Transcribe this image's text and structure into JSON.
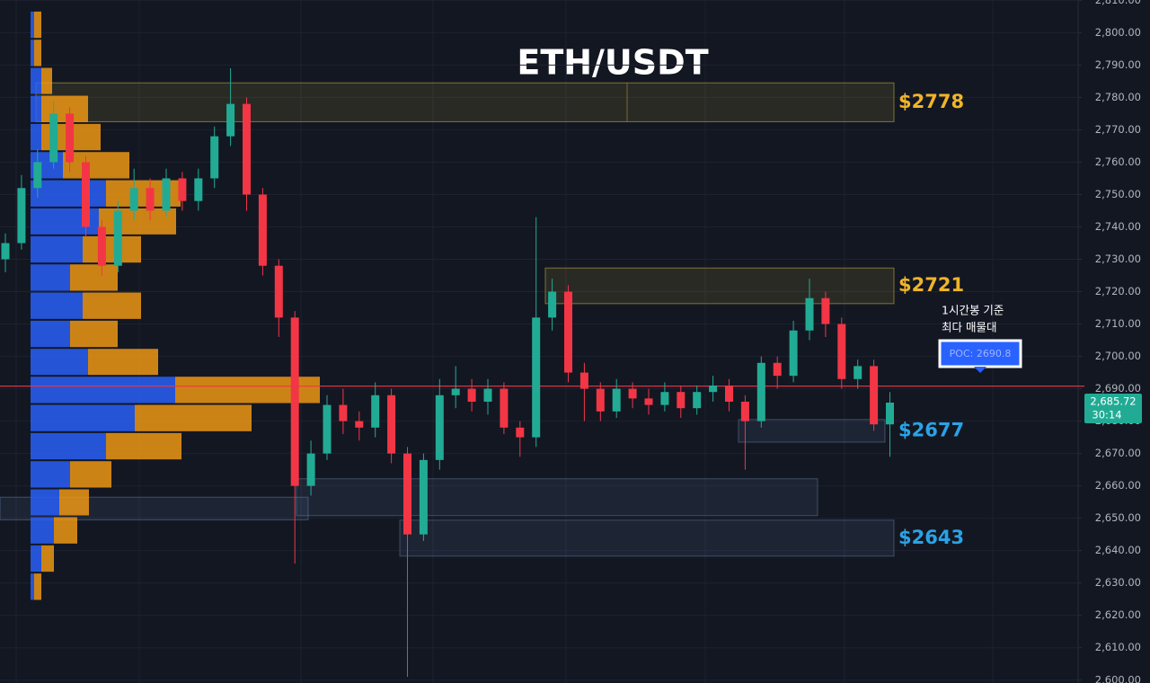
{
  "chart_data": {
    "type": "candlestick",
    "title": "ETH/USDT",
    "up_color": "#22ab94",
    "down_color": "#f23645",
    "open": [
      2730,
      2735,
      2752,
      2760,
      2775,
      2760,
      2740,
      2728,
      2745,
      2752,
      2745,
      2755,
      2748,
      2755,
      2768,
      2778,
      2750,
      2728,
      2712,
      2660,
      2670,
      2685,
      2680,
      2678,
      2688,
      2670,
      2645,
      2668,
      2688,
      2690,
      2686,
      2690,
      2678,
      2675,
      2712,
      2720,
      2695,
      2690,
      2683,
      2690,
      2687,
      2685,
      2689,
      2684,
      2689,
      2691,
      2686,
      2680,
      2698,
      2694,
      2708,
      2718,
      2710,
      2693,
      2697,
      2679
    ],
    "high": [
      2738,
      2756,
      2764,
      2779,
      2777,
      2762,
      2742,
      2748,
      2758,
      2755,
      2758,
      2757,
      2758,
      2771,
      2789,
      2780,
      2752,
      2730,
      2714,
      2674,
      2688,
      2690,
      2683,
      2692,
      2690,
      2672,
      2670,
      2693,
      2697,
      2693,
      2693,
      2692,
      2680,
      2743,
      2724,
      2722,
      2698,
      2692,
      2693,
      2692,
      2690,
      2692,
      2691,
      2691,
      2694,
      2693,
      2688,
      2700,
      2700,
      2711,
      2724,
      2720,
      2712,
      2699,
      2699,
      2689
    ],
    "low": [
      2726,
      2733,
      2749,
      2758,
      2757,
      2737,
      2725,
      2726,
      2742,
      2742,
      2743,
      2745,
      2745,
      2752,
      2765,
      2745,
      2725,
      2706,
      2636,
      2657,
      2668,
      2676,
      2674,
      2675,
      2667,
      2601,
      2643,
      2665,
      2684,
      2683,
      2682,
      2676,
      2669,
      2672,
      2708,
      2692,
      2680,
      2680,
      2681,
      2684,
      2682,
      2683,
      2681,
      2682,
      2686,
      2683,
      2665,
      2678,
      2690,
      2692,
      2705,
      2706,
      2690,
      2690,
      2677,
      2669
    ],
    "close": [
      2735,
      2752,
      2760,
      2775,
      2760,
      2740,
      2728,
      2745,
      2752,
      2745,
      2755,
      2748,
      2755,
      2768,
      2778,
      2750,
      2728,
      2712,
      2660,
      2670,
      2685,
      2680,
      2678,
      2688,
      2670,
      2645,
      2668,
      2688,
      2690,
      2686,
      2690,
      2678,
      2675,
      2712,
      2720,
      2695,
      2690,
      2683,
      2690,
      2687,
      2685,
      2689,
      2684,
      2689,
      2691,
      2686,
      2680,
      2698,
      2694,
      2708,
      2718,
      2710,
      2693,
      2697,
      2679,
      2685.72
    ],
    "ylim": [
      2599.1,
      2810.1
    ],
    "yticks": [
      {
        "value": 2600,
        "label": "2,600.00"
      },
      {
        "value": 2610,
        "label": "2,610.00"
      },
      {
        "value": 2620,
        "label": "2,620.00"
      },
      {
        "value": 2630,
        "label": "2,630.00"
      },
      {
        "value": 2640,
        "label": "2,640.00"
      },
      {
        "value": 2650,
        "label": "2,650.00"
      },
      {
        "value": 2660,
        "label": "2,660.00"
      },
      {
        "value": 2670,
        "label": "2,670.00"
      },
      {
        "value": 2680,
        "label": "2,680.00"
      },
      {
        "value": 2690,
        "label": "2,690.00"
      },
      {
        "value": 2700,
        "label": "2,700.00"
      },
      {
        "value": 2710,
        "label": "2,710.00"
      },
      {
        "value": 2720,
        "label": "2,720.00"
      },
      {
        "value": 2730,
        "label": "2,730.00"
      },
      {
        "value": 2740,
        "label": "2,740.00"
      },
      {
        "value": 2750,
        "label": "2,750.00"
      },
      {
        "value": 2760,
        "label": "2,760.00"
      },
      {
        "value": 2770,
        "label": "2,770.00"
      },
      {
        "value": 2780,
        "label": "2,780.00"
      },
      {
        "value": 2790,
        "label": "2,790.00"
      },
      {
        "value": 2800,
        "label": "2,800.00"
      },
      {
        "value": 2810,
        "label": "2,810.00"
      }
    ],
    "grid": true,
    "volume_profile": {
      "bins": [
        2806.8,
        2798.1,
        2789.4,
        2780.8,
        2772.1,
        2763.4,
        2754.7,
        2746.0,
        2737.4,
        2728.7,
        2720.0,
        2711.3,
        2702.6,
        2694.0,
        2685.3,
        2676.6,
        2667.9,
        2659.2,
        2650.6,
        2641.9,
        2633.2,
        2624.5
      ],
      "buy": [
        4,
        4,
        12,
        12,
        12,
        36,
        84,
        76,
        58,
        44,
        58,
        44,
        64,
        161,
        116,
        84,
        44,
        32,
        26,
        12,
        4
      ],
      "sell": [
        8,
        8,
        12,
        52,
        66,
        74,
        83,
        86,
        65,
        53,
        65,
        53,
        78,
        161,
        130,
        84,
        46,
        33,
        26,
        14,
        8
      ],
      "buy_color": "#2962ff",
      "sell_color": "#f59b14"
    },
    "zones": [
      {
        "low": 2772.5,
        "high": 2784.5,
        "label": "$2778",
        "color": "#f0b429"
      },
      {
        "low": 2716.3,
        "high": 2727.3,
        "label": "$2721",
        "color": "#f0b429"
      },
      {
        "low": 2673.5,
        "high": 2680.5,
        "label": "$2677",
        "color": "#2aa3e6"
      },
      {
        "low": 2650.8,
        "high": 2662.2
      },
      {
        "low": 2638.3,
        "high": 2649.4,
        "label": "$2643",
        "color": "#2aa3e6"
      },
      {
        "low": 2649.5,
        "high": 2656.5
      }
    ],
    "poc": {
      "value": 2690.8,
      "label": "POC: 2690.8",
      "color": "#f23645"
    },
    "annotation": [
      "1시간봉 기준",
      "최다 매물대"
    ],
    "last_price": {
      "value": 2685.72,
      "label": "2,685.72"
    },
    "countdown": "30:14"
  }
}
